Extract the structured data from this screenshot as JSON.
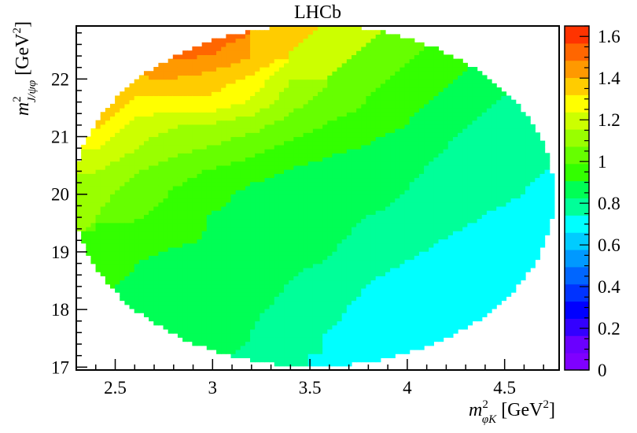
{
  "chart_data": {
    "type": "heatmap",
    "title": "LHCb",
    "xlabel": {
      "base": "m",
      "sup": "2",
      "sub": "φK",
      "unit_pre": " [GeV",
      "unit_sup": "2",
      "unit_post": "]"
    },
    "ylabel": {
      "base": "m",
      "sup": "2",
      "sub": "J/ψφ",
      "unit_pre": " [GeV",
      "unit_sup": "2",
      "unit_post": "]"
    },
    "xlim": [
      2.3,
      4.78
    ],
    "ylim": [
      16.95,
      22.92
    ],
    "zlim": [
      0,
      1.65
    ],
    "x_ticks": [
      2.5,
      3,
      3.5,
      4,
      4.5
    ],
    "x_tick_labels": [
      "2.5",
      "3",
      "3.5",
      "4",
      "4.5"
    ],
    "y_ticks": [
      17,
      18,
      19,
      20,
      21,
      22
    ],
    "y_tick_labels": [
      "17",
      "18",
      "19",
      "20",
      "21",
      "22"
    ],
    "z_ticks": [
      0,
      0.2,
      0.4,
      0.6,
      0.8,
      1,
      1.2,
      1.4,
      1.6
    ],
    "z_tick_labels": [
      "0",
      "0.2",
      "0.4",
      "0.6",
      "0.8",
      "1",
      "1.2",
      "1.4",
      "1.6"
    ],
    "grid": false,
    "palette": [
      "#7f00ff",
      "#6a00ff",
      "#3300ff",
      "#0000ff",
      "#0033ff",
      "#0066ff",
      "#0099ff",
      "#00ccff",
      "#00ffff",
      "#00ff99",
      "#00ff55",
      "#33ff00",
      "#66ff00",
      "#99ff00",
      "#ccff00",
      "#ffff00",
      "#ffcc00",
      "#ff9900",
      "#ff6600",
      "#ff3300"
    ],
    "z_samples": {
      "columns_x": [
        2.4,
        2.6,
        2.8,
        3.0,
        3.2,
        3.4,
        3.6,
        3.8,
        4.0,
        4.2,
        4.4,
        4.6,
        4.7
      ],
      "rows_y": [
        17.2,
        17.6,
        18.0,
        18.4,
        18.8,
        19.2,
        19.6,
        20.0,
        20.4,
        20.8,
        21.2,
        21.6,
        22.0,
        22.4,
        22.8
      ],
      "values": [
        [
          null,
          null,
          null,
          null,
          null,
          null,
          null,
          0.72,
          0.7,
          0.66,
          0.7,
          null,
          null
        ],
        [
          null,
          null,
          null,
          null,
          null,
          0.76,
          0.74,
          0.72,
          0.7,
          0.66,
          0.66,
          0.7,
          null
        ],
        [
          null,
          null,
          null,
          null,
          0.84,
          0.8,
          0.76,
          0.72,
          0.72,
          0.68,
          0.66,
          0.72,
          0.76
        ],
        [
          null,
          null,
          null,
          0.86,
          0.86,
          0.82,
          0.78,
          0.74,
          0.72,
          0.72,
          0.72,
          0.72,
          0.72
        ],
        [
          null,
          null,
          0.88,
          0.88,
          0.86,
          0.84,
          0.82,
          0.76,
          0.74,
          0.72,
          0.72,
          0.72,
          0.72
        ],
        [
          null,
          0.94,
          0.92,
          0.9,
          0.86,
          0.84,
          0.84,
          0.8,
          0.76,
          0.74,
          0.72,
          0.72,
          null
        ],
        [
          null,
          1.0,
          0.96,
          0.9,
          0.86,
          0.86,
          0.86,
          0.82,
          0.8,
          0.76,
          0.74,
          0.72,
          null
        ],
        [
          1.1,
          1.04,
          0.98,
          0.94,
          0.88,
          0.86,
          0.86,
          0.86,
          0.82,
          0.78,
          0.76,
          null,
          null
        ],
        [
          1.16,
          1.08,
          1.02,
          0.98,
          0.94,
          0.9,
          0.88,
          0.88,
          0.84,
          0.8,
          null,
          null,
          null
        ],
        [
          1.24,
          1.16,
          1.1,
          1.06,
          1.02,
          0.96,
          0.92,
          0.9,
          0.86,
          null,
          null,
          null,
          null
        ],
        [
          1.34,
          1.2,
          1.16,
          1.14,
          1.1,
          1.04,
          0.98,
          0.94,
          null,
          null,
          null,
          null,
          null
        ],
        [
          1.44,
          1.3,
          1.3,
          1.3,
          1.22,
          1.1,
          1.04,
          null,
          null,
          null,
          null,
          null,
          null
        ],
        [
          1.5,
          1.4,
          1.4,
          1.36,
          1.3,
          1.16,
          null,
          null,
          null,
          null,
          null,
          null,
          null
        ],
        [
          null,
          1.4,
          1.5,
          1.48,
          1.4,
          null,
          null,
          null,
          null,
          null,
          null,
          null,
          null
        ],
        [
          null,
          null,
          1.56,
          1.54,
          null,
          null,
          null,
          null,
          null,
          null,
          null,
          null,
          null
        ]
      ]
    }
  }
}
